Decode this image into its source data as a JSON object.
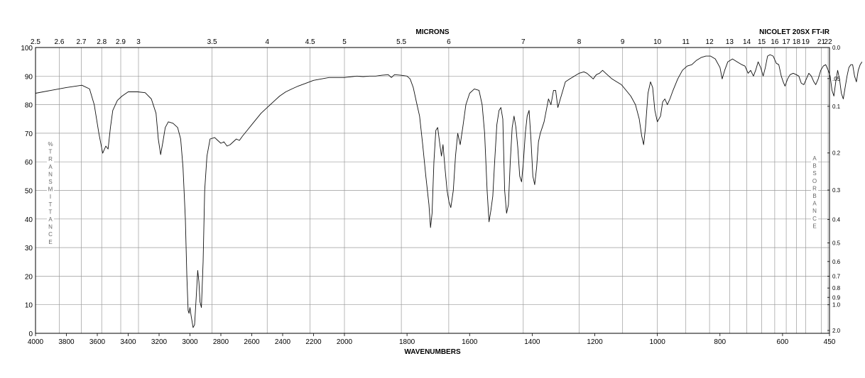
{
  "chart_data": {
    "type": "line",
    "top_axis_title": "MICRONS",
    "instrument_label": "NICOLET 20SX FT-IR",
    "xlabel": "WAVENUMBERS",
    "ylabel_left": "% TRANSMITTANCE",
    "ylabel_right": "ABSORBANCE",
    "x_break": 2000,
    "xlim": [
      4000,
      450
    ],
    "ylim": [
      0,
      100
    ],
    "grid": true,
    "x_ticks": [
      4000,
      3800,
      3600,
      3400,
      3200,
      3000,
      2800,
      2600,
      2400,
      2200,
      2000,
      1800,
      1600,
      1400,
      1200,
      1000,
      800,
      600,
      450
    ],
    "x_tick_labels": [
      "4000",
      "3800",
      "3600",
      "3400",
      "3200",
      "3000",
      "2800",
      "2600",
      "2400",
      "2200",
      "2000",
      "1800",
      "1600",
      "1400",
      "1200",
      "1000",
      "800",
      "600",
      "450"
    ],
    "y_ticks": [
      0,
      10,
      20,
      30,
      40,
      50,
      60,
      70,
      80,
      90,
      100
    ],
    "y_tick_labels": [
      "0",
      "10",
      "20",
      "30",
      "40",
      "50",
      "60",
      "70",
      "80",
      "90",
      "100"
    ],
    "micron_ticks": [
      2.5,
      2.6,
      2.7,
      2.8,
      2.9,
      3,
      3.5,
      4,
      4.5,
      5,
      5.5,
      6,
      7,
      8,
      9,
      10,
      11,
      12,
      13,
      14,
      15,
      16,
      17,
      18,
      19,
      21,
      22
    ],
    "micron_tick_labels": [
      "2.5",
      "2.6",
      "2.7",
      "2.8",
      "2.9",
      "3",
      "3.5",
      "4",
      "4.5",
      "5",
      "5.5",
      "6",
      "7",
      "8",
      "9",
      "10",
      "11",
      "12",
      "13",
      "14",
      "15",
      "16",
      "17",
      "18",
      "19",
      "21",
      "22"
    ],
    "absorbance_ticks": [
      0.0,
      0.05,
      0.1,
      0.2,
      0.3,
      0.4,
      0.5,
      0.6,
      0.7,
      0.8,
      0.9,
      1.0,
      2.0
    ],
    "absorbance_tick_labels": [
      "0.0",
      ".05",
      "0.1",
      "0.2",
      "0.3",
      "0.4",
      "0.5",
      "0.6",
      "0.7",
      "0.8",
      "0.9",
      "1.0",
      "2.0"
    ],
    "series": [
      {
        "points": [
          [
            4000,
            84
          ],
          [
            3900,
            85
          ],
          [
            3800,
            86
          ],
          [
            3700,
            86.8
          ],
          [
            3650,
            85.5
          ],
          [
            3620,
            80
          ],
          [
            3590,
            70
          ],
          [
            3565,
            63
          ],
          [
            3545,
            65.5
          ],
          [
            3530,
            64.5
          ],
          [
            3515,
            72
          ],
          [
            3500,
            78
          ],
          [
            3470,
            81.5
          ],
          [
            3440,
            83
          ],
          [
            3400,
            84.5
          ],
          [
            3340,
            84.5
          ],
          [
            3290,
            84.2
          ],
          [
            3250,
            82
          ],
          [
            3220,
            77
          ],
          [
            3205,
            68
          ],
          [
            3190,
            62.5
          ],
          [
            3175,
            67
          ],
          [
            3160,
            72
          ],
          [
            3140,
            74
          ],
          [
            3110,
            73.5
          ],
          [
            3080,
            72
          ],
          [
            3060,
            68
          ],
          [
            3045,
            58
          ],
          [
            3030,
            40
          ],
          [
            3020,
            20
          ],
          [
            3012,
            8
          ],
          [
            3006,
            7
          ],
          [
            3000,
            9
          ],
          [
            2992,
            6
          ],
          [
            2980,
            2
          ],
          [
            2970,
            3
          ],
          [
            2958,
            14
          ],
          [
            2950,
            22
          ],
          [
            2942,
            18
          ],
          [
            2935,
            11
          ],
          [
            2926,
            9
          ],
          [
            2915,
            25
          ],
          [
            2905,
            50
          ],
          [
            2890,
            62
          ],
          [
            2870,
            68
          ],
          [
            2840,
            68.5
          ],
          [
            2820,
            67.5
          ],
          [
            2800,
            66.5
          ],
          [
            2780,
            67
          ],
          [
            2760,
            65.5
          ],
          [
            2740,
            66
          ],
          [
            2720,
            67
          ],
          [
            2700,
            68
          ],
          [
            2680,
            67.5
          ],
          [
            2660,
            69
          ],
          [
            2630,
            71
          ],
          [
            2600,
            73
          ],
          [
            2570,
            75
          ],
          [
            2540,
            77
          ],
          [
            2500,
            79
          ],
          [
            2460,
            81
          ],
          [
            2420,
            83
          ],
          [
            2380,
            84.5
          ],
          [
            2340,
            85.5
          ],
          [
            2300,
            86.5
          ],
          [
            2250,
            87.5
          ],
          [
            2200,
            88.5
          ],
          [
            2150,
            89
          ],
          [
            2100,
            89.5
          ],
          [
            2050,
            89.5
          ],
          [
            2000,
            89.5
          ],
          [
            1960,
            90
          ],
          [
            1940,
            89.8
          ],
          [
            1920,
            90
          ],
          [
            1900,
            90
          ],
          [
            1880,
            90.3
          ],
          [
            1860,
            90.5
          ],
          [
            1850,
            89.5
          ],
          [
            1840,
            90.5
          ],
          [
            1820,
            90.3
          ],
          [
            1800,
            90
          ],
          [
            1790,
            89
          ],
          [
            1780,
            86
          ],
          [
            1770,
            81
          ],
          [
            1760,
            76
          ],
          [
            1750,
            66
          ],
          [
            1740,
            55
          ],
          [
            1730,
            45
          ],
          [
            1725,
            37
          ],
          [
            1720,
            42
          ],
          [
            1714,
            60
          ],
          [
            1708,
            71
          ],
          [
            1702,
            72
          ],
          [
            1695,
            66
          ],
          [
            1690,
            62
          ],
          [
            1685,
            66
          ],
          [
            1678,
            57
          ],
          [
            1672,
            50
          ],
          [
            1666,
            46
          ],
          [
            1660,
            44
          ],
          [
            1652,
            50
          ],
          [
            1645,
            62
          ],
          [
            1638,
            70
          ],
          [
            1630,
            66
          ],
          [
            1622,
            72
          ],
          [
            1612,
            80
          ],
          [
            1600,
            84
          ],
          [
            1585,
            85.5
          ],
          [
            1570,
            85
          ],
          [
            1560,
            80
          ],
          [
            1552,
            70
          ],
          [
            1544,
            50
          ],
          [
            1538,
            39
          ],
          [
            1532,
            43
          ],
          [
            1526,
            48
          ],
          [
            1520,
            60
          ],
          [
            1513,
            73
          ],
          [
            1506,
            78
          ],
          [
            1500,
            79
          ],
          [
            1494,
            75
          ],
          [
            1488,
            50
          ],
          [
            1482,
            42
          ],
          [
            1476,
            45
          ],
          [
            1470,
            60
          ],
          [
            1464,
            72
          ],
          [
            1458,
            76
          ],
          [
            1452,
            72
          ],
          [
            1446,
            65
          ],
          [
            1440,
            55
          ],
          [
            1434,
            53
          ],
          [
            1428,
            60
          ],
          [
            1422,
            70
          ],
          [
            1416,
            76
          ],
          [
            1410,
            78
          ],
          [
            1404,
            68
          ],
          [
            1398,
            55
          ],
          [
            1392,
            52
          ],
          [
            1386,
            58
          ],
          [
            1380,
            67
          ],
          [
            1374,
            70
          ],
          [
            1368,
            72
          ],
          [
            1362,
            74
          ],
          [
            1355,
            78
          ],
          [
            1348,
            82
          ],
          [
            1340,
            80
          ],
          [
            1332,
            85
          ],
          [
            1325,
            85
          ],
          [
            1318,
            79
          ],
          [
            1310,
            82
          ],
          [
            1302,
            85
          ],
          [
            1294,
            88
          ],
          [
            1280,
            89
          ],
          [
            1265,
            90
          ],
          [
            1250,
            91
          ],
          [
            1235,
            91.5
          ],
          [
            1225,
            91
          ],
          [
            1215,
            90
          ],
          [
            1205,
            89
          ],
          [
            1195,
            90.5
          ],
          [
            1185,
            91
          ],
          [
            1175,
            92
          ],
          [
            1165,
            91
          ],
          [
            1155,
            90
          ],
          [
            1145,
            89
          ],
          [
            1130,
            88
          ],
          [
            1115,
            87
          ],
          [
            1100,
            85
          ],
          [
            1085,
            83
          ],
          [
            1070,
            80
          ],
          [
            1058,
            75
          ],
          [
            1050,
            69
          ],
          [
            1044,
            66
          ],
          [
            1038,
            72
          ],
          [
            1030,
            84
          ],
          [
            1022,
            88
          ],
          [
            1015,
            86
          ],
          [
            1008,
            78
          ],
          [
            1000,
            74
          ],
          [
            990,
            76
          ],
          [
            983,
            81
          ],
          [
            976,
            82
          ],
          [
            968,
            80
          ],
          [
            960,
            82
          ],
          [
            950,
            85
          ],
          [
            935,
            89
          ],
          [
            920,
            92
          ],
          [
            905,
            93.5
          ],
          [
            890,
            94
          ],
          [
            875,
            95.5
          ],
          [
            860,
            96.5
          ],
          [
            845,
            97
          ],
          [
            830,
            97
          ],
          [
            815,
            96
          ],
          [
            800,
            93
          ],
          [
            793,
            89
          ],
          [
            785,
            92
          ],
          [
            775,
            95
          ],
          [
            760,
            96
          ],
          [
            745,
            95
          ],
          [
            730,
            94
          ],
          [
            720,
            93.5
          ],
          [
            710,
            91
          ],
          [
            702,
            92
          ],
          [
            693,
            90
          ],
          [
            686,
            92
          ],
          [
            678,
            95
          ],
          [
            670,
            93
          ],
          [
            662,
            90
          ],
          [
            655,
            93
          ],
          [
            648,
            97
          ],
          [
            640,
            97.5
          ],
          [
            630,
            97
          ],
          [
            620,
            94.5
          ],
          [
            612,
            94
          ],
          [
            604,
            90
          ],
          [
            598,
            88
          ],
          [
            592,
            86.5
          ],
          [
            584,
            89
          ],
          [
            576,
            90.5
          ],
          [
            566,
            91
          ],
          [
            556,
            90.5
          ],
          [
            548,
            90
          ],
          [
            540,
            87.5
          ],
          [
            532,
            87
          ],
          [
            524,
            89
          ],
          [
            516,
            91
          ],
          [
            508,
            90
          ],
          [
            500,
            88
          ],
          [
            494,
            87
          ],
          [
            486,
            89
          ],
          [
            478,
            92
          ],
          [
            470,
            93.5
          ],
          [
            462,
            94
          ],
          [
            454,
            92
          ],
          [
            448,
            90
          ],
          [
            442,
            85
          ],
          [
            436,
            83
          ],
          [
            430,
            88
          ],
          [
            424,
            92
          ],
          [
            418,
            89
          ],
          [
            412,
            84
          ],
          [
            406,
            82
          ],
          [
            400,
            86
          ],
          [
            394,
            90
          ],
          [
            388,
            93
          ],
          [
            382,
            94
          ],
          [
            376,
            94
          ],
          [
            370,
            90
          ],
          [
            364,
            88
          ],
          [
            358,
            92
          ],
          [
            352,
            94
          ],
          [
            346,
            95
          ]
        ]
      }
    ]
  }
}
